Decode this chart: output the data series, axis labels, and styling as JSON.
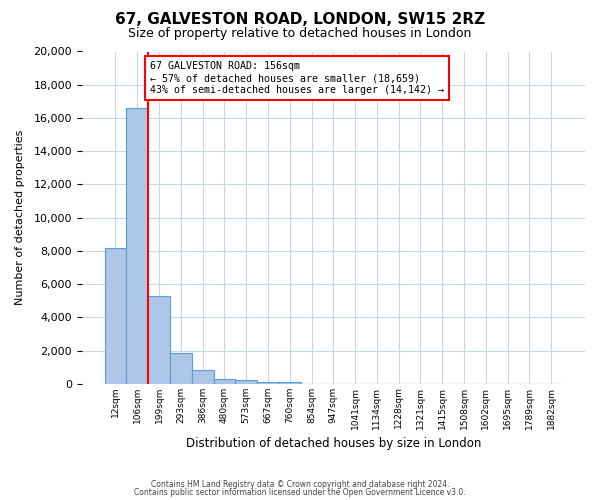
{
  "title": "67, GALVESTON ROAD, LONDON, SW15 2RZ",
  "subtitle": "Size of property relative to detached houses in London",
  "xlabel": "Distribution of detached houses by size in London",
  "ylabel": "Number of detached properties",
  "bin_labels": [
    "12sqm",
    "106sqm",
    "199sqm",
    "293sqm",
    "386sqm",
    "480sqm",
    "573sqm",
    "667sqm",
    "760sqm",
    "854sqm",
    "947sqm",
    "1041sqm",
    "1134sqm",
    "1228sqm",
    "1321sqm",
    "1415sqm",
    "1508sqm",
    "1602sqm",
    "1695sqm",
    "1789sqm",
    "1882sqm"
  ],
  "bar_values": [
    8200,
    16600,
    5300,
    1850,
    800,
    300,
    200,
    130,
    80,
    0,
    0,
    0,
    0,
    0,
    0,
    0,
    0,
    0,
    0,
    0,
    0
  ],
  "bar_color": "#aec6e8",
  "bar_edge_color": "#5a9fd4",
  "property_line_color": "red",
  "annotation_line1": "67 GALVESTON ROAD: 156sqm",
  "annotation_line2": "← 57% of detached houses are smaller (18,659)",
  "annotation_line3": "43% of semi-detached houses are larger (14,142) →",
  "annotation_box_color": "white",
  "annotation_box_edge": "red",
  "ylim": [
    0,
    20000
  ],
  "yticks": [
    0,
    2000,
    4000,
    6000,
    8000,
    10000,
    12000,
    14000,
    16000,
    18000,
    20000
  ],
  "footer_line1": "Contains HM Land Registry data © Crown copyright and database right 2024.",
  "footer_line2": "Contains public sector information licensed under the Open Government Licence v3.0.",
  "bg_color": "#ffffff",
  "grid_color": "#c8d8e8"
}
